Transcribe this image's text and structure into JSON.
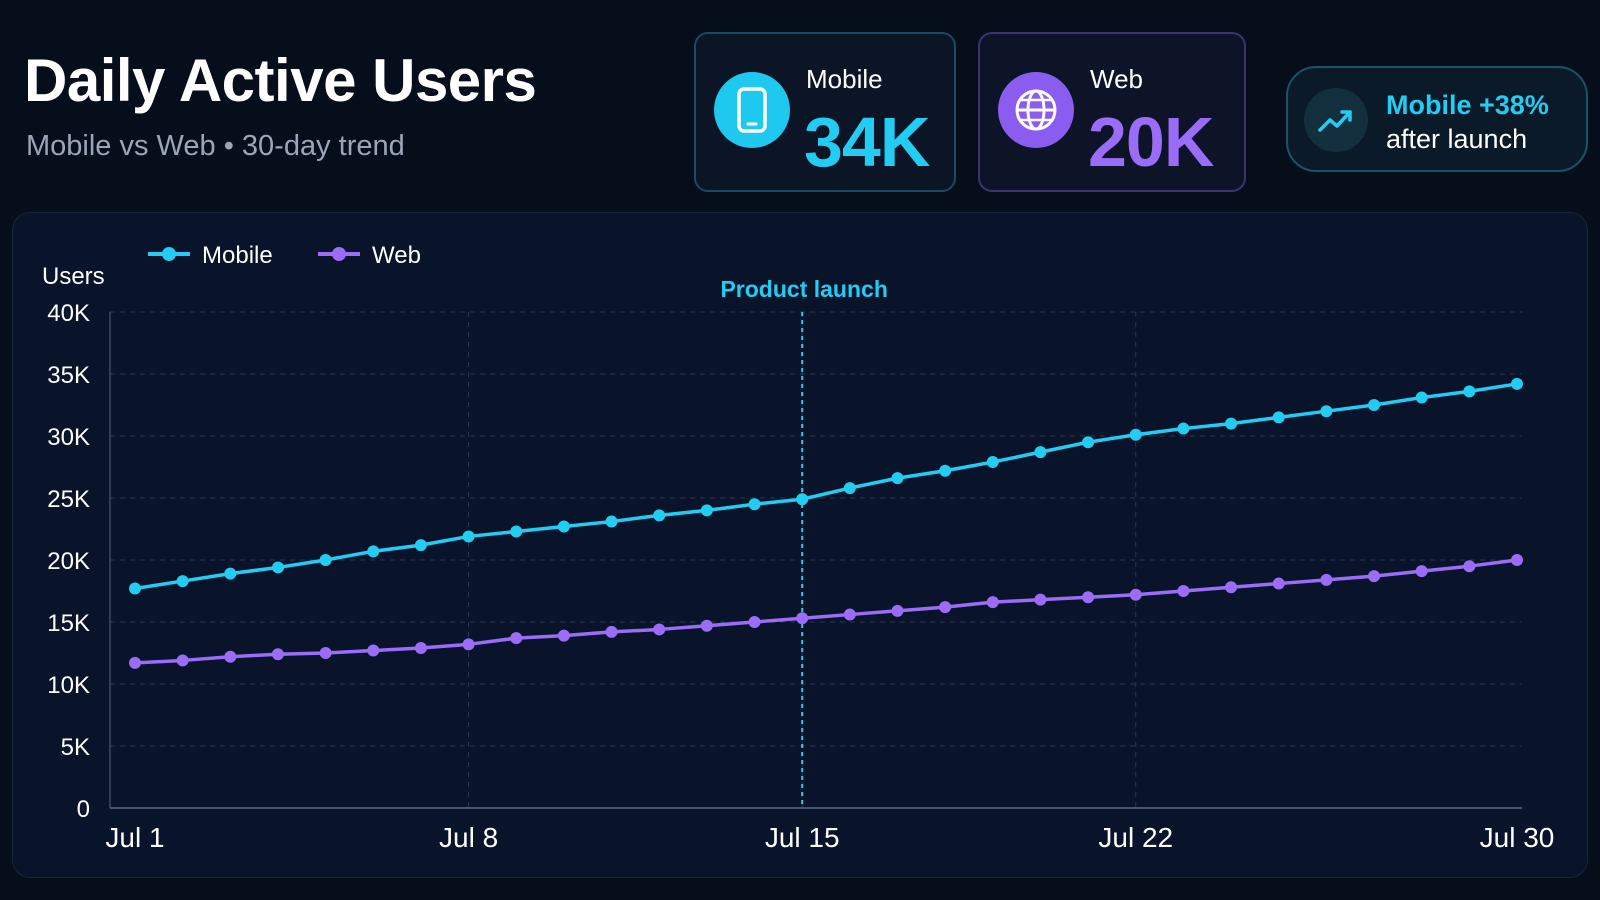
{
  "header": {
    "title": "Daily Active Users",
    "subtitle": "Mobile vs Web • 30-day trend"
  },
  "kpis": [
    {
      "label": "Mobile",
      "value": "34K",
      "icon": "smartphone-icon",
      "color": "#22ccf2"
    },
    {
      "label": "Web",
      "value": "20K",
      "icon": "globe-icon",
      "color": "#9b6cf7"
    }
  ],
  "trend_badge": {
    "highlight": "Mobile +38%",
    "text": "after launch",
    "icon": "trending-up-icon"
  },
  "chart_data": {
    "type": "line",
    "ylabel": "Users",
    "ylim": [
      0,
      40000
    ],
    "yticks": [
      0,
      5000,
      10000,
      15000,
      20000,
      25000,
      30000,
      35000,
      40000
    ],
    "ytick_labels": [
      "0",
      "5K",
      "10K",
      "15K",
      "20K",
      "25K",
      "30K",
      "35K",
      "40K"
    ],
    "x": [
      "Jul 1",
      "Jul 2",
      "Jul 3",
      "Jul 4",
      "Jul 5",
      "Jul 6",
      "Jul 7",
      "Jul 8",
      "Jul 9",
      "Jul 10",
      "Jul 11",
      "Jul 12",
      "Jul 13",
      "Jul 14",
      "Jul 15",
      "Jul 16",
      "Jul 17",
      "Jul 18",
      "Jul 19",
      "Jul 20",
      "Jul 21",
      "Jul 22",
      "Jul 23",
      "Jul 24",
      "Jul 25",
      "Jul 26",
      "Jul 27",
      "Jul 28",
      "Jul 29",
      "Jul 30"
    ],
    "xtick_labels": [
      "Jul 1",
      "Jul 8",
      "Jul 15",
      "Jul 22",
      "Jul 30"
    ],
    "grid": true,
    "legend": "top-left",
    "series": [
      {
        "name": "Mobile",
        "color": "#22ccf2",
        "values": [
          17700,
          18300,
          18900,
          19400,
          20000,
          20700,
          21200,
          21900,
          22300,
          22700,
          23100,
          23600,
          24000,
          24500,
          24900,
          25800,
          26600,
          27200,
          27900,
          28700,
          29500,
          30100,
          30600,
          31000,
          31500,
          32000,
          32500,
          33100,
          33600,
          34200
        ]
      },
      {
        "name": "Web",
        "color": "#9b6cf7",
        "values": [
          11700,
          11900,
          12200,
          12400,
          12500,
          12700,
          12900,
          13200,
          13700,
          13900,
          14200,
          14400,
          14700,
          15000,
          15300,
          15600,
          15900,
          16200,
          16600,
          16800,
          17000,
          17200,
          17500,
          17800,
          18100,
          18400,
          18700,
          19100,
          19500,
          20000
        ]
      }
    ],
    "annotations": [
      {
        "x": "Jul 15",
        "label": "Product launch",
        "color": "#22ccf2"
      }
    ]
  }
}
